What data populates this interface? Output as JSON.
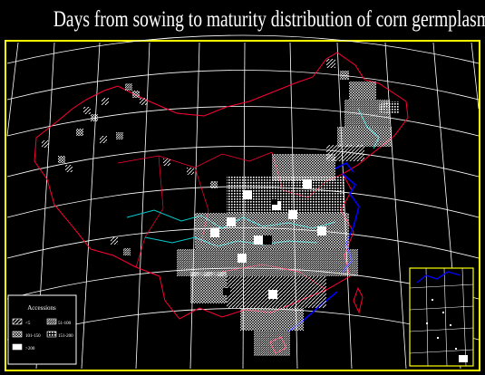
{
  "title": "Days from  sowing to maturity distribution of corn germplasm",
  "legend": {
    "title": "Accessions",
    "items": [
      {
        "label": "<5",
        "pattern": "hatch-sparse"
      },
      {
        "label": "51-100",
        "pattern": "hatch-dense"
      },
      {
        "label": "101-150",
        "pattern": "cross"
      },
      {
        "label": "151-200",
        "pattern": "dots"
      },
      {
        "label": ">200",
        "pattern": "solid"
      }
    ]
  },
  "colors": {
    "background": "#000000",
    "frame": "#ffff00",
    "graticule": "#ffffff",
    "border": "#ff0033",
    "rivers": "#00cccc",
    "coast": "#0000ff"
  }
}
